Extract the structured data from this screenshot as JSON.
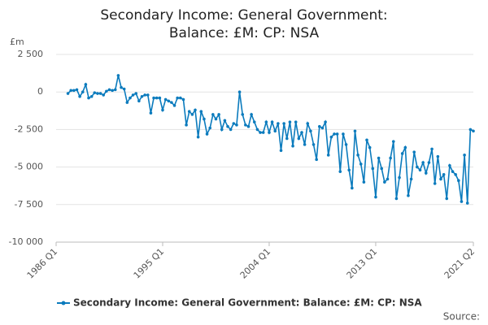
{
  "chart_data": {
    "type": "line",
    "title": "Secondary Income: General Government: Balance: £M: CP: NSA",
    "y_unit": "£m",
    "source": "Source:",
    "categories": [
      "1986 Q1",
      null,
      null,
      null,
      null,
      null,
      null,
      null,
      null,
      null,
      null,
      null,
      null,
      null,
      null,
      null,
      null,
      null,
      null,
      null,
      null,
      null,
      null,
      null,
      null,
      null,
      null,
      null,
      null,
      null,
      null,
      null,
      null,
      null,
      null,
      null,
      "1995 Q1",
      null,
      null,
      null,
      null,
      null,
      null,
      null,
      null,
      null,
      null,
      null,
      null,
      null,
      null,
      null,
      null,
      null,
      null,
      null,
      null,
      null,
      null,
      null,
      null,
      null,
      null,
      null,
      null,
      null,
      null,
      null,
      null,
      null,
      null,
      null,
      "2004 Q1",
      null,
      null,
      null,
      null,
      null,
      null,
      null,
      null,
      null,
      null,
      null,
      null,
      null,
      null,
      null,
      null,
      null,
      null,
      null,
      null,
      null,
      null,
      null,
      null,
      null,
      null,
      null,
      null,
      null,
      null,
      null,
      null,
      null,
      null,
      null,
      "2013 Q1",
      null,
      null,
      null,
      null,
      null,
      null,
      null,
      null,
      null,
      null,
      null,
      null,
      null,
      null,
      null,
      null,
      null,
      null,
      null,
      null,
      null,
      null,
      null,
      null,
      null,
      null,
      null,
      null,
      null,
      null,
      null,
      null,
      "2021 Q2"
    ],
    "series": [
      {
        "name": "Secondary Income: General Government: Balance: £M: CP: NSA",
        "color": "#0b7bbd",
        "values": [
          null,
          null,
          null,
          null,
          -100,
          100,
          100,
          150,
          -300,
          0,
          500,
          -400,
          -300,
          -50,
          -100,
          -100,
          -200,
          50,
          150,
          100,
          150,
          1100,
          300,
          200,
          -700,
          -400,
          -200,
          -100,
          -600,
          -300,
          -200,
          -200,
          -1400,
          -400,
          -400,
          -400,
          -1200,
          -500,
          -600,
          -700,
          -900,
          -400,
          -400,
          -500,
          -2200,
          -1300,
          -1500,
          -1200,
          -3000,
          -1300,
          -1800,
          -2800,
          -2400,
          -1500,
          -1800,
          -1500,
          -2500,
          -1900,
          -2300,
          -2500,
          -2100,
          -2200,
          0,
          -1500,
          -2200,
          -2300,
          -1500,
          -2000,
          -2500,
          -2700,
          -2700,
          -2000,
          -2700,
          -2000,
          -2600,
          -2100,
          -3900,
          -2100,
          -3100,
          -2000,
          -3600,
          -2000,
          -3100,
          -2700,
          -3500,
          -2100,
          -2600,
          -3500,
          -4500,
          -2300,
          -2400,
          -2000,
          -4200,
          -3000,
          -2800,
          -2800,
          -5300,
          -2800,
          -3500,
          -5200,
          -6400,
          -2600,
          -4200,
          -4800,
          -6000,
          -3200,
          -3700,
          -5100,
          -7000,
          -4400,
          -5100,
          -6000,
          -5800,
          -4400,
          -3300,
          -7100,
          -5700,
          -4100,
          -3700,
          -6900,
          -5800,
          -4000,
          -5000,
          -5200,
          -4700,
          -5400,
          -4700,
          -3800,
          -6100,
          -4300,
          -5800,
          -5500,
          -7100,
          -4900,
          -5300,
          -5500,
          -5900,
          -7300,
          -4200,
          -7400,
          -2500,
          -2600
        ]
      }
    ],
    "ylim": [
      -10000,
      2500
    ],
    "yticks": [
      {
        "value": 2500,
        "label": "2 500"
      },
      0,
      {
        "value": -2500,
        "label": "-2 500"
      },
      {
        "value": -5000,
        "label": "-5 000"
      },
      {
        "value": -7500,
        "label": "-7 500"
      },
      {
        "value": -10000,
        "label": "-10 000"
      }
    ],
    "grid": true
  }
}
